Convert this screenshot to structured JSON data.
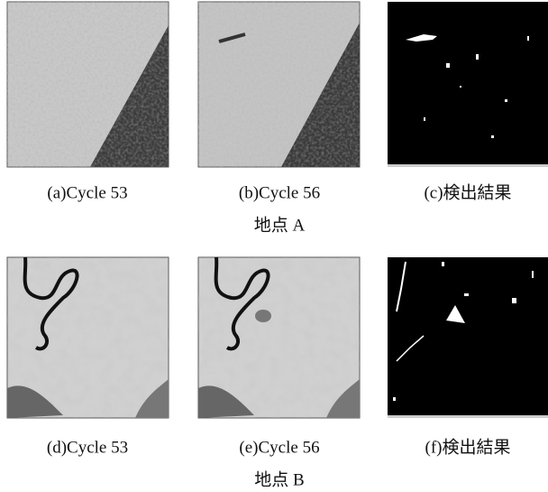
{
  "figure": {
    "groups": [
      {
        "panels": [
          {
            "caption": "(a)Cycle 53"
          },
          {
            "caption": "(b)Cycle 56"
          },
          {
            "caption": "(c)検出結果"
          }
        ],
        "label": "地点 A"
      },
      {
        "panels": [
          {
            "caption": "(d)Cycle 53"
          },
          {
            "caption": "(e)Cycle 56"
          },
          {
            "caption": "(f)検出結果"
          }
        ],
        "label": "地点 B"
      }
    ]
  }
}
